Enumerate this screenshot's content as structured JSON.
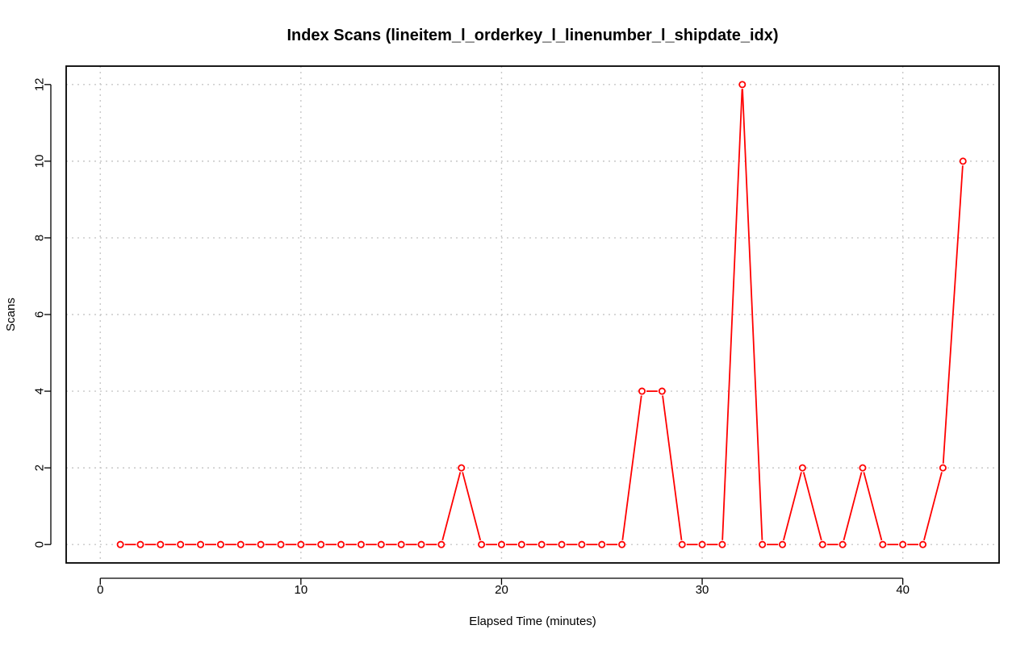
{
  "chart_data": {
    "type": "line",
    "title": "Index Scans (lineitem_l_orderkey_l_linenumber_l_shipdate_idx)",
    "xlabel": "Elapsed Time (minutes)",
    "ylabel": "Scans",
    "xlim": [
      -1.7,
      44.8
    ],
    "ylim": [
      -0.48,
      12.48
    ],
    "xticks": [
      0,
      10,
      20,
      30,
      40
    ],
    "yticks": [
      0,
      2,
      4,
      6,
      8,
      10,
      12
    ],
    "grid": true,
    "series": [
      {
        "color": "#ff0000",
        "marker": "open-circle",
        "x": [
          1,
          2,
          3,
          4,
          5,
          6,
          7,
          8,
          9,
          10,
          11,
          12,
          13,
          14,
          15,
          16,
          17,
          18,
          19,
          20,
          21,
          22,
          23,
          24,
          25,
          26,
          27,
          28,
          29,
          30,
          31,
          32,
          33,
          34,
          35,
          36,
          37,
          38,
          39,
          40,
          41,
          42,
          43
        ],
        "y": [
          0,
          0,
          0,
          0,
          0,
          0,
          0,
          0,
          0,
          0,
          0,
          0,
          0,
          0,
          0,
          0,
          0,
          2,
          0,
          0,
          0,
          0,
          0,
          0,
          0,
          0,
          4,
          4,
          0,
          0,
          0,
          12,
          0,
          0,
          2,
          0,
          0,
          2,
          0,
          0,
          0,
          2,
          10
        ]
      }
    ]
  }
}
